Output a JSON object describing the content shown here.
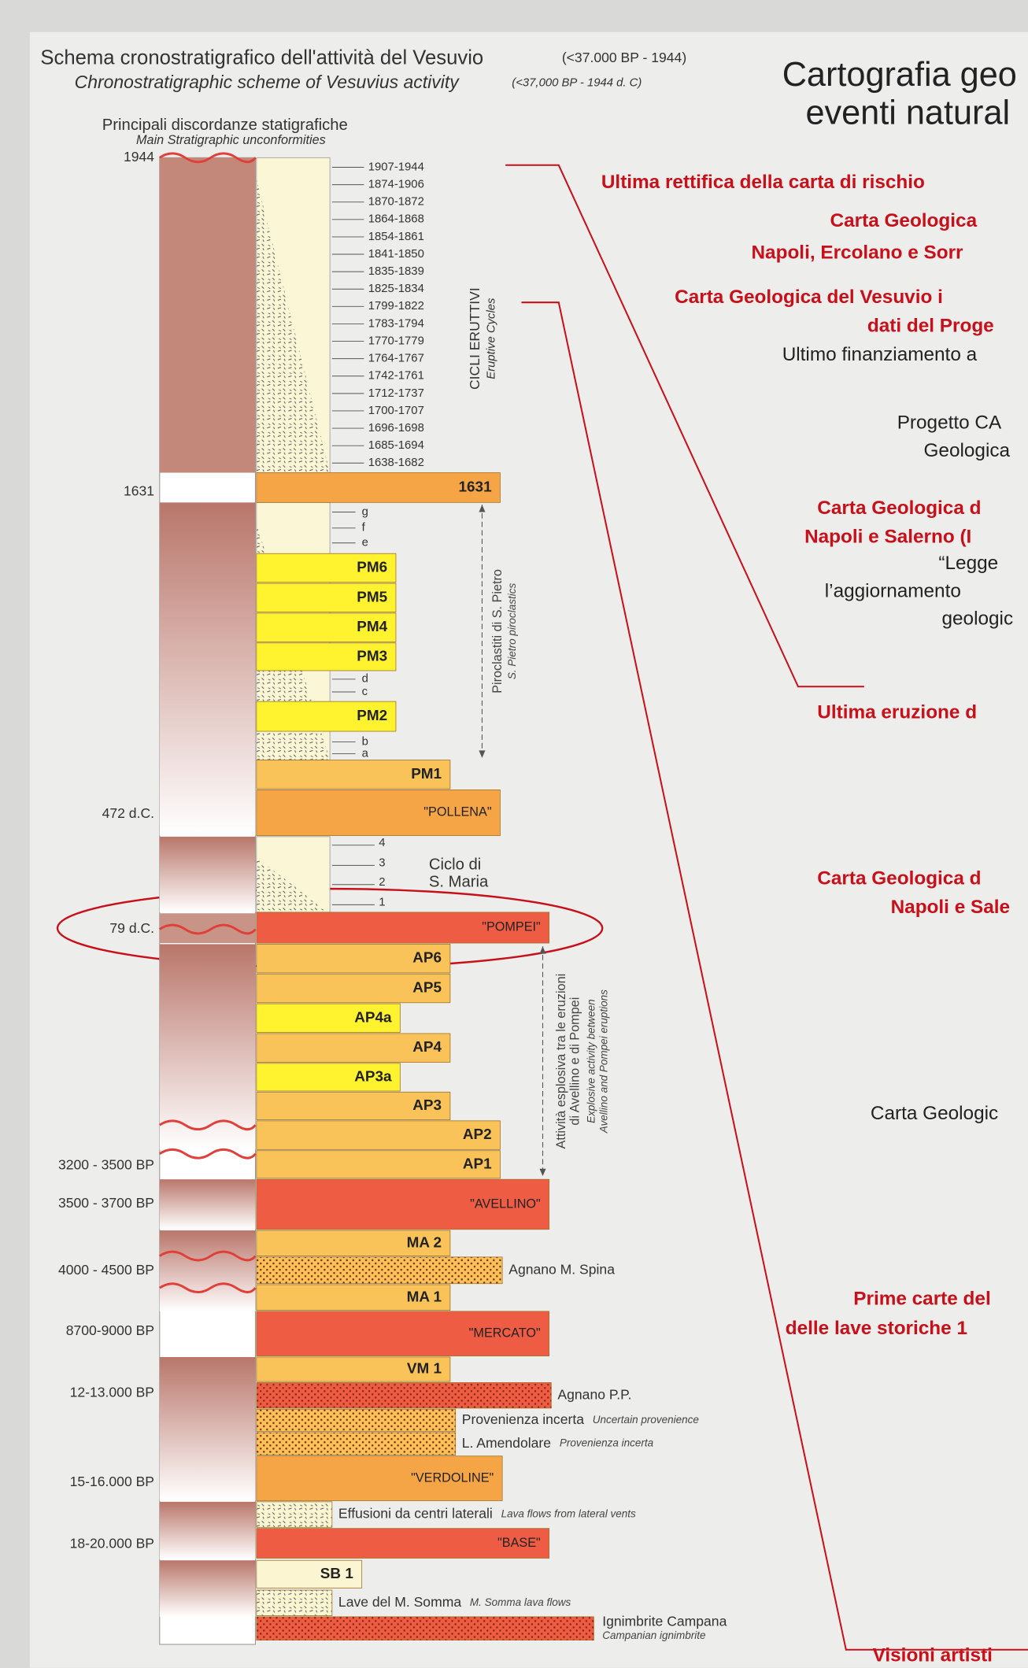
{
  "header": {
    "title": "Schema cronostratigrafico dell'attività del Vesuvio",
    "title_range": "(<37.000 BP - 1944)",
    "subtitle": "Chronostratigraphic scheme of Vesuvius activity",
    "subtitle_range": "(<37,000 BP - 1944 d. C)",
    "right_title": [
      "Cartografia geo",
      "eventi natural"
    ]
  },
  "unconformities": {
    "title": "Principali discordanze statigrafiche",
    "subtitle": "Main Stratigraphic unconformities"
  },
  "ages": [
    "1944",
    "1631",
    "472 d.C.",
    "79 d.C.",
    "3200 - 3500 BP",
    "3500 - 3700 BP",
    "4000 - 4500 BP",
    "8700-9000 BP",
    "12-13.000 BP",
    "15-16.000 BP",
    "18-20.000 BP"
  ],
  "cycles": {
    "label": "CICLI ERUTTIVI",
    "label_en": "Eruptive Cycles",
    "items": [
      "1907-1944",
      "1874-1906",
      "1870-1872",
      "1864-1868",
      "1854-1861",
      "1841-1850",
      "1835-1839",
      "1825-1834",
      "1799-1822",
      "1783-1794",
      "1770-1779",
      "1764-1767",
      "1742-1761",
      "1712-1737",
      "1700-1707",
      "1696-1698",
      "1685-1694",
      "1638-1682"
    ]
  },
  "minor_units": [
    "g",
    "f",
    "e",
    "d",
    "c",
    "b",
    "a"
  ],
  "s_maria": {
    "title": [
      "Ciclo di",
      "S. Maria"
    ],
    "units": [
      "4",
      "3",
      "2",
      "1"
    ]
  },
  "layers": [
    {
      "label": "1631"
    },
    {
      "label": "PM6"
    },
    {
      "label": "PM5"
    },
    {
      "label": "PM4"
    },
    {
      "label": "PM3"
    },
    {
      "label": "PM2"
    },
    {
      "label": "PM1"
    },
    {
      "label": "\"POLLENA\""
    },
    {
      "label": "\"POMPEI\""
    },
    {
      "label": "AP6"
    },
    {
      "label": "AP5"
    },
    {
      "label": "AP4a"
    },
    {
      "label": "AP4"
    },
    {
      "label": "AP3a"
    },
    {
      "label": "AP3"
    },
    {
      "label": "AP2"
    },
    {
      "label": "AP1"
    },
    {
      "label": "\"AVELLINO\""
    },
    {
      "label": "MA 2"
    },
    {
      "name": "Agnano M. Spina"
    },
    {
      "label": "MA 1"
    },
    {
      "label": "\"MERCATO\""
    },
    {
      "label": "VM 1"
    },
    {
      "name": "Agnano P.P."
    },
    {
      "name": "Provenienza incerta",
      "note": "Uncertain provenience"
    },
    {
      "name": "L. Amendolare",
      "note": "Provenienza incerta"
    },
    {
      "label": "\"VERDOLINE\""
    },
    {
      "name": "Effusioni da centri laterali",
      "note": "Lava flows from lateral vents"
    },
    {
      "label": "\"BASE\""
    },
    {
      "label": "SB 1"
    },
    {
      "name": "Lave del M. Somma",
      "note": "M. Somma lava flows"
    },
    {
      "name": "Ignimbrite Campana",
      "note": "Campanian ignimbrite"
    }
  ],
  "side_labels": {
    "pietro": [
      "Piroclastiti di S. Pietro",
      "S. Pietro piroclastics"
    ],
    "explosive": [
      "Attività esplosiva tra le eruzioni",
      "di Avellino e di Pompei",
      "Explosive activity between",
      "Avellino and Pompei eruptions"
    ]
  },
  "right_notes": [
    "Ultima rettifica della carta di rischio",
    "Carta Geologica",
    "Napoli, Ercolano e Sorr",
    "Carta Geologica del Vesuvio i",
    "dati del Proge",
    "Ultimo finanziamento a",
    "Progetto CA",
    "Geologica",
    "Carta Geologica d",
    "Napoli e Salerno (I",
    "“Legge",
    "l’aggiornamento",
    "geologic",
    "Ultima eruzione d",
    "Carta Geologica d",
    "Napoli e Sale",
    "Carta Geologic",
    "Prime carte del",
    "delle lave storiche 1",
    "Visioni artisti"
  ]
}
